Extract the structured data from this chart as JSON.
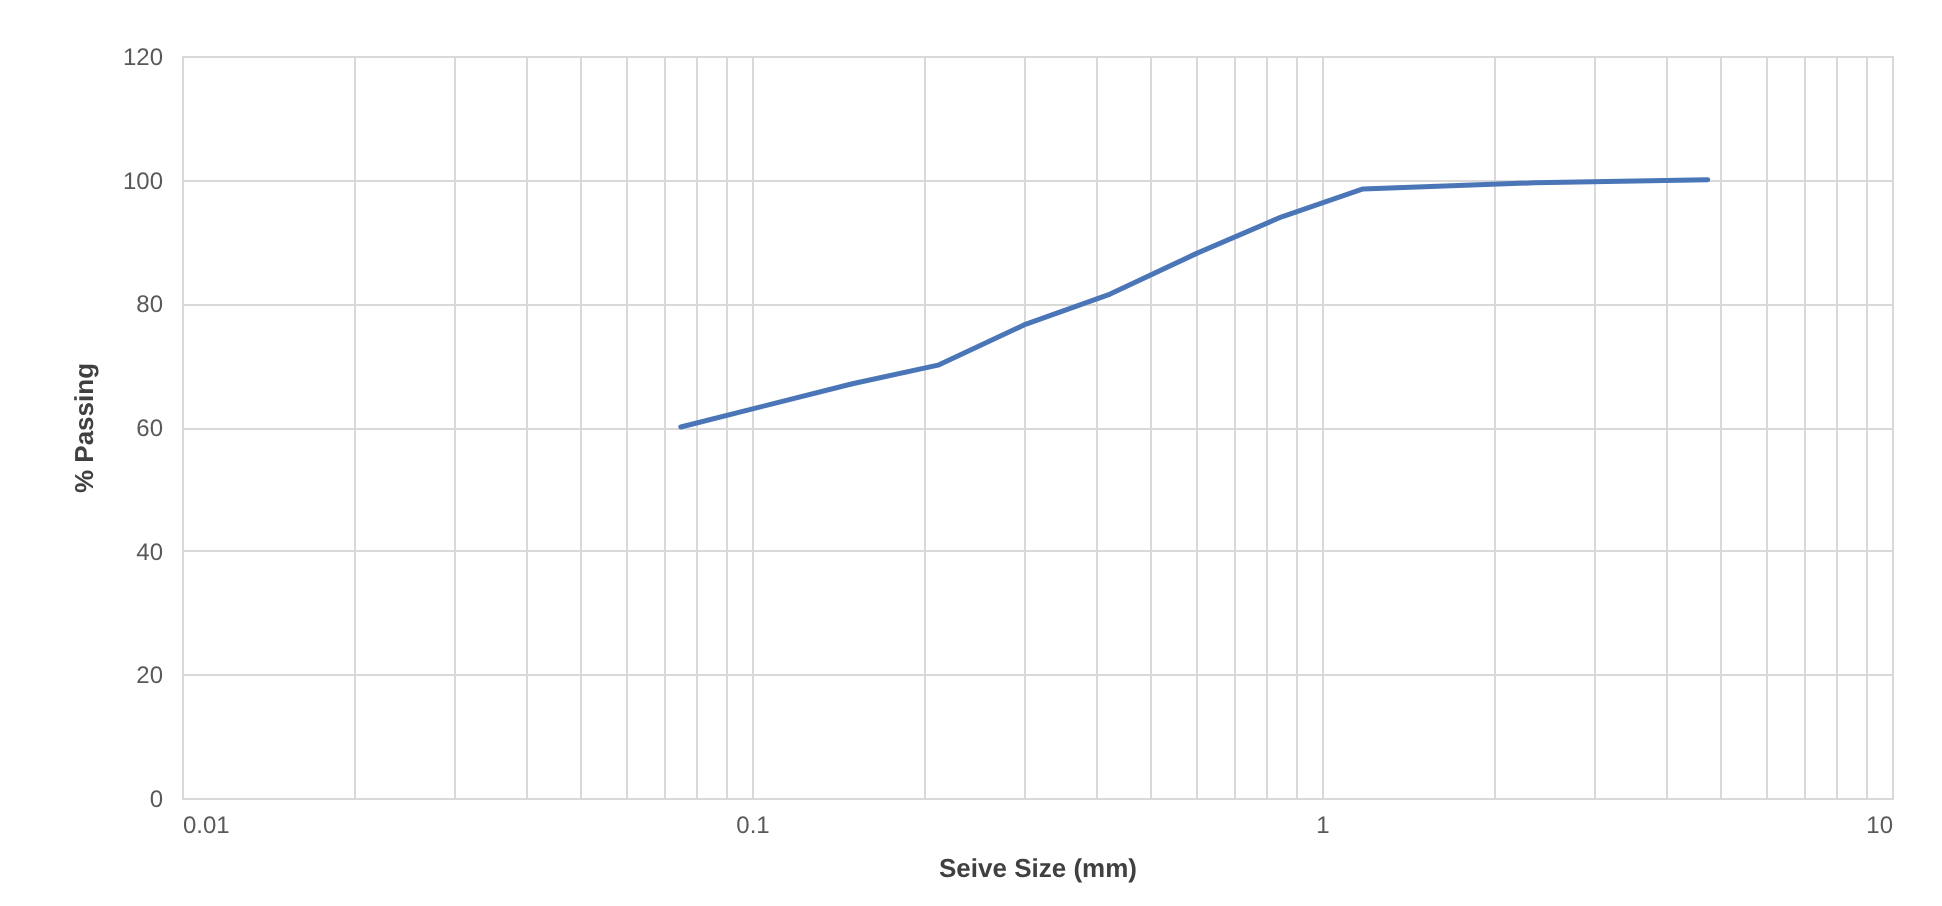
{
  "chart_data": {
    "type": "line",
    "xlabel": "Seive Size (mm)",
    "ylabel": "% Passing",
    "series": [
      {
        "color": "#4a76b8",
        "x": [
          0.075,
          0.15,
          0.212,
          0.3,
          0.425,
          0.6,
          0.85,
          1.18,
          2.36,
          4.75
        ],
        "values": [
          60,
          67,
          70,
          76.5,
          81.5,
          88,
          94,
          98.5,
          99.5,
          100
        ]
      }
    ],
    "log": "x",
    "xlim": [
      0.01,
      10
    ],
    "ylim": [
      0,
      120
    ],
    "xticks": [
      0.01,
      {
        "value": 0.02,
        "label": null
      },
      {
        "value": 0.03,
        "label": null
      },
      {
        "value": 0.04,
        "label": null
      },
      {
        "value": 0.05,
        "label": null
      },
      {
        "value": 0.06,
        "label": null
      },
      {
        "value": 0.07,
        "label": null
      },
      {
        "value": 0.08,
        "label": null
      },
      {
        "value": 0.09,
        "label": null
      },
      0.1,
      {
        "value": 0.2,
        "label": null
      },
      {
        "value": 0.3,
        "label": null
      },
      {
        "value": 0.4,
        "label": null
      },
      {
        "value": 0.5,
        "label": null
      },
      {
        "value": 0.6,
        "label": null
      },
      {
        "value": 0.7,
        "label": null
      },
      {
        "value": 0.8,
        "label": null
      },
      {
        "value": 0.9,
        "label": null
      },
      1,
      {
        "value": 2,
        "label": null
      },
      {
        "value": 3,
        "label": null
      },
      {
        "value": 4,
        "label": null
      },
      {
        "value": 5,
        "label": null
      },
      {
        "value": 6,
        "label": null
      },
      {
        "value": 7,
        "label": null
      },
      {
        "value": 8,
        "label": null
      },
      {
        "value": 9,
        "label": null
      },
      10
    ],
    "yticks": [
      0,
      20,
      40,
      60,
      80,
      100,
      120
    ],
    "grid": true,
    "marker": "none",
    "line_style": "solid"
  }
}
